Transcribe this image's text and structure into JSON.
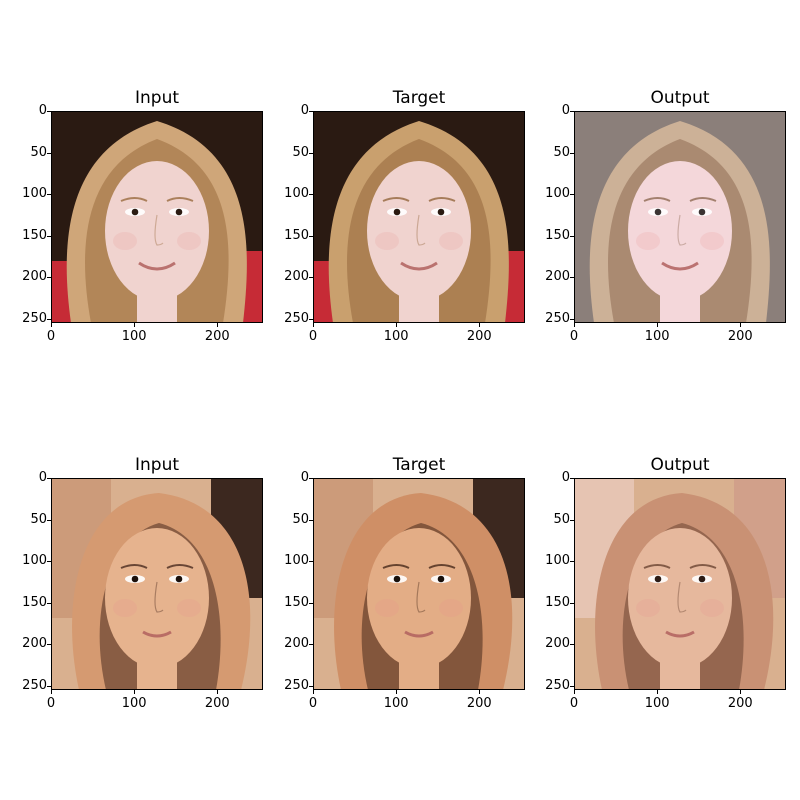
{
  "figure": {
    "rows": [
      {
        "titles": [
          "Input",
          "Target",
          "Output"
        ],
        "images": [
          {
            "subject": "blonde woman smiling",
            "palette": [
              "#f0d3cf",
              "#cfa679",
              "#9a6b3e",
              "#2b1b12",
              "#c62b36"
            ]
          },
          {
            "subject": "blonde woman smiling",
            "palette": [
              "#f0d3cf",
              "#c9a06e",
              "#93663c",
              "#2a1a11",
              "#c62b36"
            ]
          },
          {
            "subject": "blonde woman smiling (generated)",
            "palette": [
              "#f4d7da",
              "#ccb197",
              "#8e6a52",
              "#3a3332",
              "#8b7f7a"
            ]
          }
        ]
      },
      {
        "titles": [
          "Input",
          "Target",
          "Output"
        ],
        "images": [
          {
            "subject": "brunette woman",
            "palette": [
              "#e6b38e",
              "#d59a71",
              "#4a2b1f",
              "#1b0f0a",
              "#f0d3bf"
            ]
          },
          {
            "subject": "brunette woman",
            "palette": [
              "#e3ad86",
              "#cf8f66",
              "#462819",
              "#19100b",
              "#f0d1bc"
            ]
          },
          {
            "subject": "brunette woman (generated)",
            "palette": [
              "#e6b89d",
              "#c99174",
              "#6a4332",
              "#2d1c16",
              "#d8a6a4"
            ]
          }
        ]
      }
    ],
    "xticks": [
      "0",
      "100",
      "200"
    ],
    "yticks": [
      "0",
      "50",
      "100",
      "150",
      "200",
      "250"
    ]
  }
}
